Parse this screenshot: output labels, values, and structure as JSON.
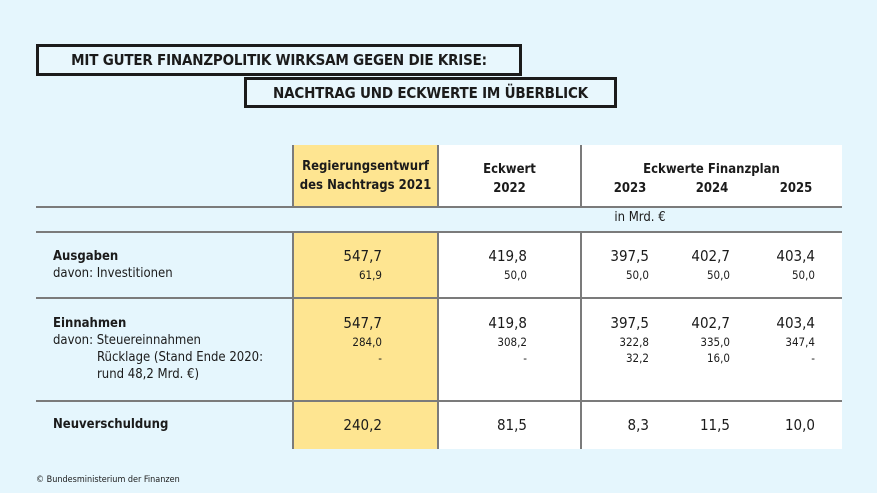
{
  "title": {
    "line1": "MIT GUTER FINANZPOLITIK WIRKSAM GEGEN DIE KRISE:",
    "line2": "NACHTRAG UND ECKWERTE IM ÜBERBLICK"
  },
  "header": {
    "col_draft": [
      "Regierungsentwurf",
      "des Nachtrags 2021"
    ],
    "col_2022": [
      "Eckwert",
      "2022"
    ],
    "col_plan": "Eckwerte Finanzplan",
    "years": [
      "2023",
      "2024",
      "2025"
    ]
  },
  "unit": "in Mrd. €",
  "rows": [
    {
      "label": "Ausgaben",
      "sub_labels": [
        "davon: Investitionen"
      ],
      "values": [
        [
          "547,7",
          "61,9"
        ],
        [
          "419,8",
          "50,0"
        ],
        [
          "397,5",
          "50,0"
        ],
        [
          "402,7",
          "50,0"
        ],
        [
          "403,4",
          "50,0"
        ]
      ]
    },
    {
      "label": "Einnahmen",
      "sub_labels": [
        "davon: Steuereinnahmen",
        "Rücklage (Stand Ende 2020:",
        "rund 48,2 Mrd. €)"
      ],
      "values": [
        [
          "547,7",
          "284,0",
          "-"
        ],
        [
          "419,8",
          "308,2",
          "-"
        ],
        [
          "397,5",
          "322,8",
          "32,2"
        ],
        [
          "402,7",
          "335,0",
          "16,0"
        ],
        [
          "403,4",
          "347,4",
          "-"
        ]
      ]
    },
    {
      "label": "Neuverschuldung",
      "sub_labels": [],
      "values": [
        [
          "240,2"
        ],
        [
          "81,5"
        ],
        [
          "8,3"
        ],
        [
          "11,5"
        ],
        [
          "10,0"
        ]
      ]
    }
  ],
  "footer": "© Bundesministerium der Finanzen",
  "colors": {
    "background": "#e5f6fd",
    "highlight": "#fee591",
    "lines": "#7b7b7b"
  }
}
